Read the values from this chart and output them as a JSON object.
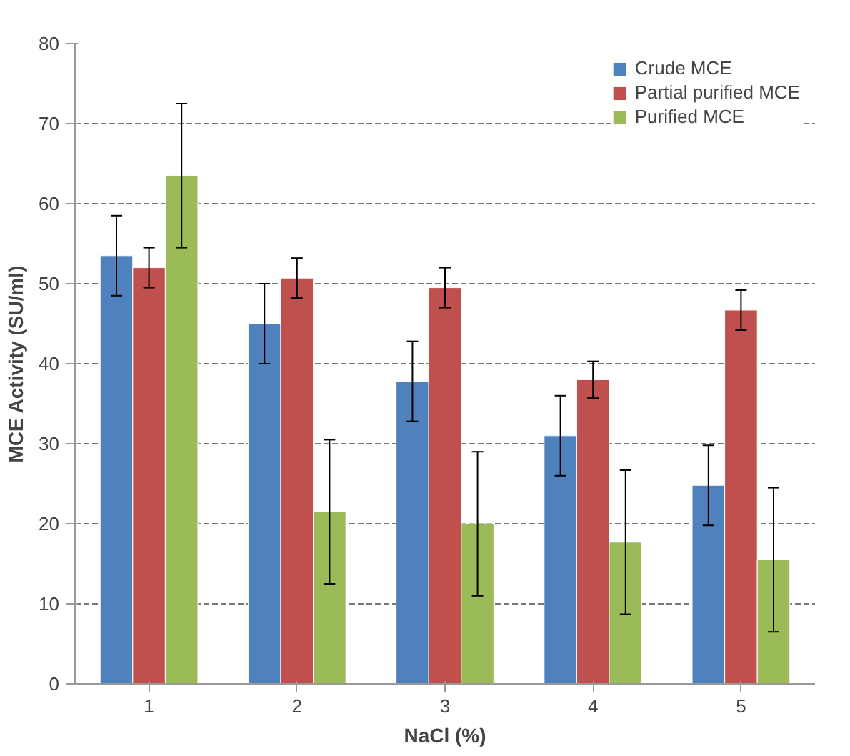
{
  "chart_data": {
    "type": "bar",
    "xlabel": "NaCl (%)",
    "ylabel": "MCE Activity (SU/ml)",
    "categories": [
      "1",
      "2",
      "3",
      "4",
      "5"
    ],
    "series": [
      {
        "name": "Crude MCE",
        "color": "#4f81bd",
        "values": [
          53.5,
          45,
          37.8,
          31,
          24.8
        ],
        "errors": [
          5,
          5,
          5,
          5,
          5
        ]
      },
      {
        "name": "Partial purified MCE",
        "color": "#c0504d",
        "values": [
          52,
          50.7,
          49.5,
          38,
          46.7
        ],
        "errors": [
          2.5,
          2.5,
          2.5,
          2.3,
          2.5
        ]
      },
      {
        "name": "Purified MCE",
        "color": "#9bbb59",
        "values": [
          63.5,
          21.5,
          20,
          17.7,
          15.5
        ],
        "errors": [
          9,
          9,
          9,
          9,
          9
        ]
      }
    ],
    "ylim": [
      0,
      80
    ],
    "yticks": [
      0,
      10,
      20,
      30,
      40,
      50,
      60,
      70,
      80
    ],
    "grid": "y",
    "legend": "top right"
  }
}
